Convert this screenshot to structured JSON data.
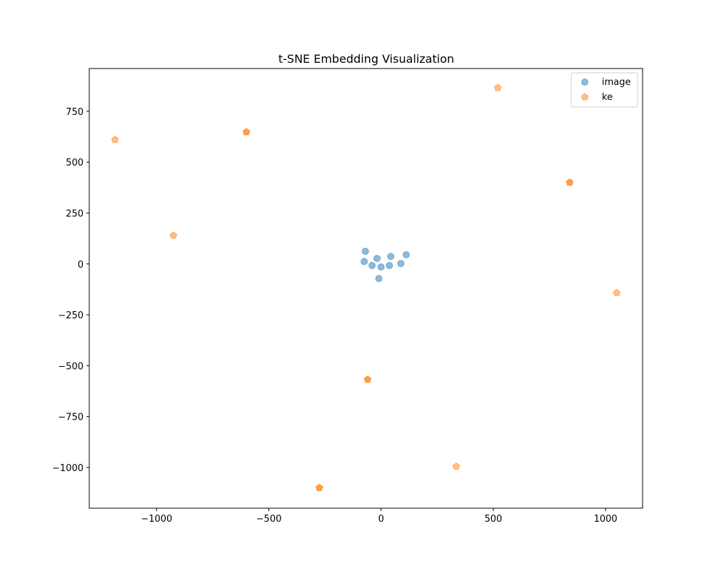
{
  "chart_data": {
    "type": "scatter",
    "title": "t-SNE Embedding Visualization",
    "xlabel": "",
    "ylabel": "",
    "xlim": [
      -1300,
      1165
    ],
    "ylim": [
      -1200,
      960
    ],
    "xticks": [
      -1000,
      -500,
      0,
      500,
      1000
    ],
    "yticks": [
      -1000,
      -750,
      -500,
      -250,
      0,
      250,
      500,
      750
    ],
    "xtick_labels": [
      "−1000",
      "−500",
      "0",
      "500",
      "1000"
    ],
    "ytick_labels": [
      "−1000",
      "−750",
      "−500",
      "−250",
      "0",
      "250",
      "500",
      "750"
    ],
    "grid": false,
    "legend_position": "top-right",
    "series": [
      {
        "name": "image",
        "marker": "circle",
        "color": "#1f77b4",
        "points": [
          {
            "x": -70,
            "y": 62
          },
          {
            "x": -75,
            "y": 12
          },
          {
            "x": -40,
            "y": -8
          },
          {
            "x": -18,
            "y": 27
          },
          {
            "x": 0,
            "y": -15
          },
          {
            "x": 37,
            "y": -8
          },
          {
            "x": 43,
            "y": 37
          },
          {
            "x": 88,
            "y": 2
          },
          {
            "x": 112,
            "y": 45
          },
          {
            "x": -10,
            "y": -72
          }
        ]
      },
      {
        "name": "ke",
        "marker": "pentagon",
        "color": "#ff7f0e",
        "points": [
          {
            "x": -1185,
            "y": 610
          },
          {
            "x": -600,
            "y": 648
          },
          {
            "x": -600,
            "y": 648
          },
          {
            "x": -925,
            "y": 140
          },
          {
            "x": 520,
            "y": 865
          },
          {
            "x": 840,
            "y": 400
          },
          {
            "x": 840,
            "y": 400
          },
          {
            "x": 1050,
            "y": -142
          },
          {
            "x": -60,
            "y": -568
          },
          {
            "x": -60,
            "y": -568
          },
          {
            "x": -275,
            "y": -1100
          },
          {
            "x": -275,
            "y": -1100
          },
          {
            "x": 335,
            "y": -995
          }
        ]
      }
    ]
  }
}
